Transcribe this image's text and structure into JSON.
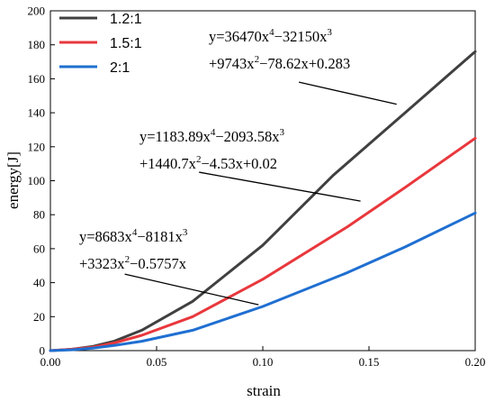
{
  "chart_data": {
    "type": "line",
    "xlabel": "strain",
    "ylabel": "energy[J]",
    "xlim": [
      0,
      0.2
    ],
    "ylim": [
      0,
      200
    ],
    "x_ticks": [
      "0.00",
      "0.05",
      "0.10",
      "0.15",
      "0.20"
    ],
    "y_ticks": [
      "0",
      "20",
      "40",
      "60",
      "80",
      "100",
      "120",
      "140",
      "160",
      "180",
      "200"
    ],
    "grid": false,
    "legend_position": "top-left",
    "series": [
      {
        "name": "1.2:1",
        "color": "#404040",
        "x": [
          0,
          0.01,
          0.02,
          0.03,
          0.043,
          0.067,
          0.1,
          0.133,
          0.167,
          0.2
        ],
        "y": [
          0,
          0.8,
          2.5,
          5.5,
          12,
          29,
          62,
          103,
          140,
          176
        ]
      },
      {
        "name": "1.5:1",
        "color": "#e8383d",
        "x": [
          0,
          0.01,
          0.02,
          0.03,
          0.043,
          0.067,
          0.1,
          0.14,
          0.167,
          0.2
        ],
        "y": [
          0,
          0.8,
          2.0,
          4.5,
          9,
          20,
          42,
          73,
          96,
          125
        ]
      },
      {
        "name": "2:1",
        "color": "#1f6fd1",
        "x": [
          0,
          0.01,
          0.02,
          0.03,
          0.043,
          0.067,
          0.1,
          0.14,
          0.167,
          0.2
        ],
        "y": [
          0,
          0.5,
          1.5,
          3.0,
          5.5,
          12,
          26,
          46,
          61,
          81
        ]
      }
    ],
    "annotations": [
      {
        "line1": {
          "a": "y=36470x",
          "b": "−32150x"
        },
        "line2": {
          "a": "+9743x",
          "b": "−78.62x+0.283"
        },
        "pointer": {
          "from": [
            0.117,
            158
          ],
          "to": [
            0.163,
            145
          ]
        }
      },
      {
        "line1": {
          "a": "y=1183.89x",
          "b": "−2093.58x"
        },
        "line2": {
          "a": "+1440.7x",
          "b": "−4.53x+0.02"
        },
        "pointer": {
          "from": [
            0.07,
            105
          ],
          "to": [
            0.146,
            88
          ]
        }
      },
      {
        "line1": {
          "a": "y=8683x",
          "b": "−8181x"
        },
        "line2": {
          "a": "+3323x",
          "b": "−0.5757x"
        },
        "pointer": {
          "from": [
            0.035,
            45
          ],
          "to": [
            0.098,
            27
          ]
        }
      }
    ]
  }
}
